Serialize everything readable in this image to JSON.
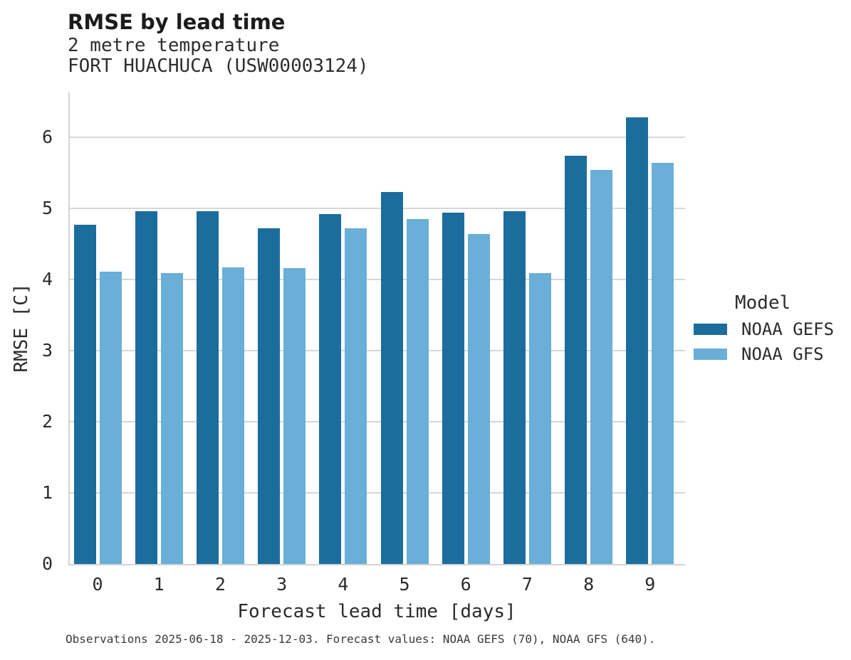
{
  "header": {
    "title": "RMSE by lead time",
    "subtitle1": "2 metre temperature",
    "subtitle2": "FORT HUACHUCA (USW00003124)"
  },
  "chart_data": {
    "type": "bar",
    "title": "RMSE by lead time",
    "subtitle": [
      "2 metre temperature",
      "FORT HUACHUCA (USW00003124)"
    ],
    "categories": [
      "0",
      "1",
      "2",
      "3",
      "4",
      "5",
      "6",
      "7",
      "8",
      "9"
    ],
    "series": [
      {
        "name": "NOAA GEFS",
        "color": "#1b6d9e",
        "values": [
          4.77,
          4.96,
          4.96,
          4.72,
          4.92,
          5.23,
          4.94,
          4.96,
          5.74,
          6.28
        ]
      },
      {
        "name": "NOAA GFS",
        "color": "#69afd7",
        "values": [
          4.11,
          4.09,
          4.17,
          4.16,
          4.72,
          4.85,
          4.64,
          4.09,
          5.54,
          5.64
        ]
      }
    ],
    "xlabel": "Forecast lead time [days]",
    "ylabel": "RMSE [C]",
    "ylim": [
      0,
      6.6
    ],
    "yticks": [
      0,
      1,
      2,
      3,
      4,
      5,
      6
    ],
    "grid": true,
    "legend_title": "Model",
    "legend_position": "right"
  },
  "legend": {
    "title": "Model",
    "items": [
      "NOAA GEFS",
      "NOAA GFS"
    ]
  },
  "caption": "Observations 2025-06-18 - 2025-12-03. Forecast values: NOAA GEFS (70), NOAA GFS (640)."
}
